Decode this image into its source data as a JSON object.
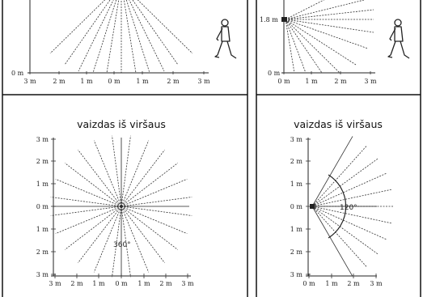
{
  "panels": {
    "top_left": {
      "y_tick": "0 m",
      "x_ticks": [
        "3 m",
        "2 m",
        "1 m",
        "0 m",
        "1 m",
        "2 m",
        "3 m"
      ]
    },
    "top_right": {
      "y_ticks": [
        "1.8 m",
        "0 m"
      ],
      "x_ticks": [
        "0 m",
        "1 m",
        "2 m",
        "3 m"
      ]
    },
    "bottom_left": {
      "title": "vaizdas iš viršaus",
      "y_ticks": [
        "3 m",
        "2 m",
        "1 m",
        "0 m",
        "1 m",
        "2 m",
        "3 m"
      ],
      "x_ticks": [
        "3 m",
        "2 m",
        "1 m",
        "0 m",
        "1 m",
        "2 m",
        "3 m"
      ],
      "angle_label": "360°"
    },
    "bottom_right": {
      "title": "vaizdas iš viršaus",
      "y_ticks": [
        "3 m",
        "2 m",
        "1 m",
        "0 m",
        "1 m",
        "2 m",
        "3 m"
      ],
      "x_ticks": [
        "0 m",
        "1 m",
        "2 m",
        "3 m"
      ],
      "angle_label": "120°"
    }
  },
  "icons": [
    "walking-person-icon",
    "walking-person-icon"
  ]
}
